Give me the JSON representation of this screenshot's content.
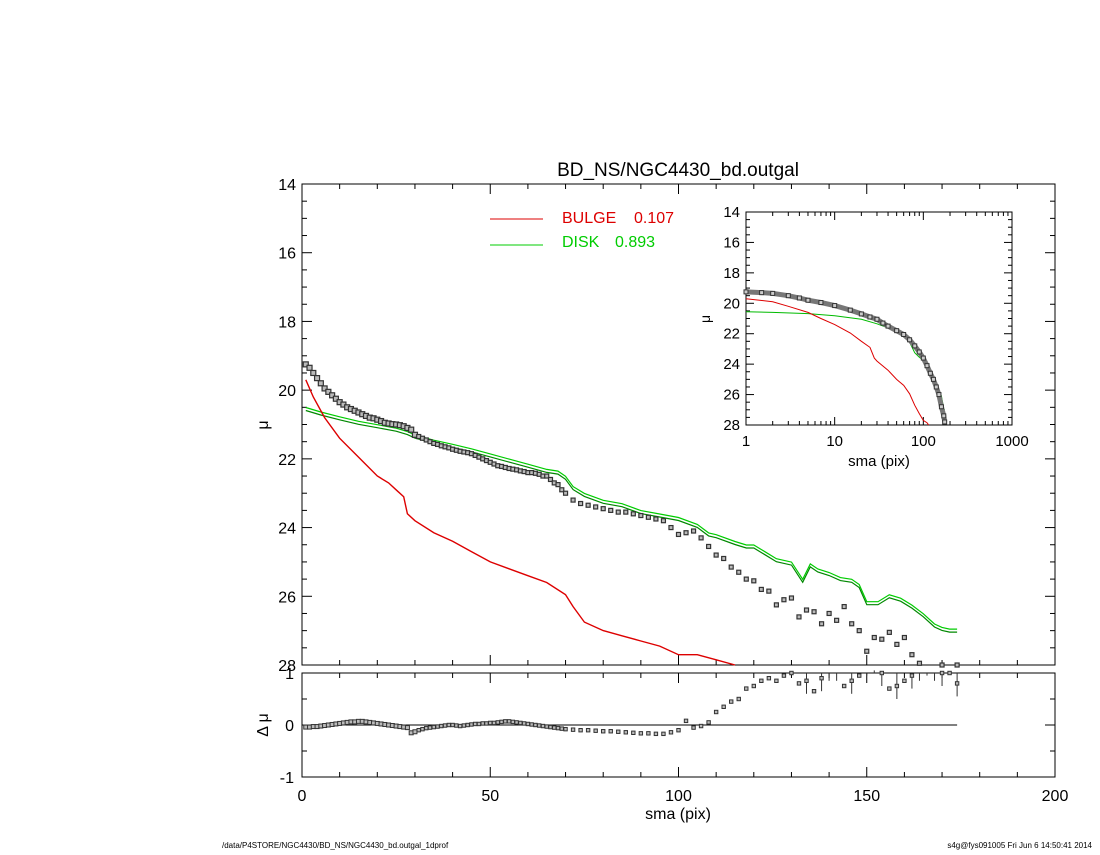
{
  "figure": {
    "title": "BD_NS/NGC4430_bd.outgal",
    "footer_left": "/data/P4STORE/NGC4430/BD_NS/NGC4430_bd.outgal_1dprof",
    "footer_right": "s4g@fys091005  Fri Jun  6 14:50:41 2014"
  },
  "chart_data": [
    {
      "id": "main",
      "type": "scatter",
      "ylabel": "μ",
      "xlim": [
        0,
        200
      ],
      "ylim": [
        28,
        14
      ],
      "y_inverted": true,
      "xticks": [
        0,
        50,
        100,
        150,
        200
      ],
      "yticks": [
        14,
        16,
        18,
        20,
        22,
        24,
        26,
        28
      ],
      "legend": {
        "placement": "top-center",
        "entries": [
          {
            "label": "BULGE",
            "value": "0.107",
            "color": "#dd0000"
          },
          {
            "label": "DISK",
            "value": "0.893",
            "color": "#00cc00"
          }
        ]
      },
      "series": [
        {
          "role": "data",
          "marker": "square",
          "color": "#555555",
          "x": [
            1,
            2,
            3,
            4,
            5,
            6,
            7,
            8,
            9,
            10,
            11,
            12,
            13,
            14,
            15,
            16,
            17,
            18,
            19,
            20,
            21,
            22,
            23,
            24,
            25,
            26,
            27,
            28,
            29,
            30,
            31,
            32,
            33,
            34,
            35,
            36,
            37,
            38,
            39,
            40,
            41,
            42,
            43,
            44,
            45,
            46,
            47,
            48,
            49,
            50,
            51,
            52,
            53,
            54,
            55,
            56,
            57,
            58,
            59,
            60,
            61,
            62,
            63,
            64,
            65,
            66,
            67,
            68,
            69,
            70,
            72,
            74,
            76,
            78,
            80,
            82,
            84,
            86,
            88,
            90,
            92,
            94,
            96,
            98,
            100,
            102,
            104,
            106,
            108,
            110,
            112,
            114,
            116,
            118,
            120,
            122,
            124,
            126,
            128,
            130,
            132,
            134,
            136,
            138,
            140,
            142,
            144,
            146,
            148,
            150,
            152,
            154,
            156,
            158,
            160,
            162,
            164,
            166,
            168,
            170,
            172,
            174
          ],
          "y": [
            19.25,
            19.35,
            19.5,
            19.65,
            19.8,
            19.95,
            20.05,
            20.15,
            20.25,
            20.35,
            20.42,
            20.5,
            20.55,
            20.6,
            20.65,
            20.7,
            20.75,
            20.8,
            20.82,
            20.86,
            20.9,
            20.95,
            20.97,
            20.99,
            21.0,
            21.02,
            21.05,
            21.1,
            21.15,
            21.3,
            21.35,
            21.4,
            21.45,
            21.5,
            21.55,
            21.58,
            21.62,
            21.65,
            21.68,
            21.72,
            21.75,
            21.78,
            21.8,
            21.82,
            21.85,
            21.9,
            21.95,
            22.0,
            22.05,
            22.1,
            22.15,
            22.2,
            22.22,
            22.25,
            22.28,
            22.3,
            22.32,
            22.35,
            22.37,
            22.4,
            22.4,
            22.42,
            22.45,
            22.5,
            22.5,
            22.6,
            22.7,
            22.75,
            22.9,
            23.0,
            23.2,
            23.3,
            23.35,
            23.4,
            23.45,
            23.5,
            23.55,
            23.55,
            23.6,
            23.65,
            23.7,
            23.75,
            23.8,
            24.0,
            24.2,
            24.15,
            24.1,
            24.3,
            24.55,
            24.8,
            24.9,
            25.15,
            25.3,
            25.5,
            25.55,
            25.8,
            25.85,
            26.25,
            26.1,
            26.05,
            26.6,
            26.4,
            26.45,
            26.8,
            26.5,
            26.7,
            26.3,
            26.8,
            27.0,
            27.6,
            27.2,
            27.25,
            27.05,
            27.4,
            27.2,
            27.7,
            27.95,
            28.2,
            28.5,
            28.0,
            28.3,
            28.0
          ]
        },
        {
          "role": "model",
          "color": "#00aa00",
          "x": [
            1,
            5,
            10,
            15,
            20,
            25,
            28,
            30,
            35,
            40,
            45,
            50,
            55,
            60,
            65,
            68,
            70,
            72,
            75,
            80,
            85,
            90,
            95,
            100,
            105,
            108,
            110,
            115,
            118,
            120,
            123,
            126,
            130,
            133,
            135,
            137,
            140,
            143,
            146,
            148,
            150,
            153,
            156,
            159,
            162,
            165,
            168,
            170,
            172,
            174
          ],
          "y": [
            20.55,
            20.68,
            20.82,
            20.95,
            21.05,
            21.15,
            21.25,
            21.35,
            21.5,
            21.62,
            21.75,
            21.9,
            22.05,
            22.2,
            22.35,
            22.4,
            22.55,
            22.85,
            23.05,
            23.25,
            23.35,
            23.55,
            23.65,
            23.75,
            23.95,
            24.2,
            24.25,
            24.45,
            24.55,
            24.55,
            24.75,
            24.95,
            25.05,
            25.55,
            25.1,
            25.25,
            25.35,
            25.5,
            25.55,
            25.7,
            26.2,
            26.2,
            26.0,
            26.1,
            26.3,
            26.55,
            26.85,
            26.95,
            27.0,
            27.0
          ]
        },
        {
          "role": "bulge",
          "color": "#dd0000",
          "x": [
            1,
            3,
            6,
            10,
            15,
            20,
            23,
            25,
            27,
            28,
            30,
            35,
            40,
            45,
            50,
            55,
            60,
            65,
            70,
            72,
            75,
            80,
            85,
            90,
            95,
            100,
            105,
            110,
            115
          ],
          "y": [
            19.7,
            20.2,
            20.8,
            21.4,
            21.95,
            22.5,
            22.7,
            22.9,
            23.1,
            23.6,
            23.8,
            24.15,
            24.4,
            24.7,
            25.0,
            25.2,
            25.4,
            25.6,
            25.95,
            26.3,
            26.75,
            27.0,
            27.15,
            27.3,
            27.45,
            27.7,
            27.7,
            27.85,
            28.0
          ]
        }
      ]
    },
    {
      "id": "inset",
      "type": "line",
      "xlabel": "sma (pix)",
      "ylabel": "μ",
      "x_scale": "log",
      "xlim": [
        1,
        1000
      ],
      "ylim": [
        28,
        14
      ],
      "y_inverted": true,
      "xticks": [
        1,
        10,
        100,
        1000
      ],
      "xtick_labels": [
        "1",
        "10",
        "100",
        "1000"
      ],
      "yticks": [
        14,
        16,
        18,
        20,
        22,
        24,
        26,
        28
      ],
      "series": [
        {
          "role": "data",
          "color": "#555555",
          "x": [
            1,
            1.5,
            2,
            3,
            4,
            5,
            7,
            10,
            15,
            20,
            25,
            30,
            35,
            40,
            50,
            60,
            70,
            80,
            90,
            100,
            110,
            120,
            130,
            140,
            150,
            160,
            170,
            174
          ],
          "y": [
            19.25,
            19.3,
            19.35,
            19.5,
            19.65,
            19.8,
            19.95,
            20.15,
            20.45,
            20.7,
            20.9,
            21.05,
            21.3,
            21.5,
            21.8,
            22.05,
            22.4,
            22.8,
            23.2,
            23.6,
            24.1,
            24.6,
            25.0,
            25.5,
            26.0,
            26.8,
            27.4,
            27.8
          ]
        },
        {
          "role": "model",
          "color": "#00aa00",
          "x": [
            1,
            2,
            5,
            10,
            20,
            30,
            40,
            50,
            60,
            70,
            80,
            90,
            100,
            110,
            120,
            130,
            140,
            150,
            160,
            170,
            174
          ],
          "y": [
            20.55,
            20.6,
            20.68,
            20.82,
            21.05,
            21.35,
            21.62,
            21.9,
            22.2,
            22.55,
            23.25,
            23.55,
            23.75,
            24.25,
            24.55,
            25.05,
            25.35,
            26.2,
            26.1,
            26.95,
            27.0
          ]
        },
        {
          "role": "bulge",
          "color": "#dd0000",
          "x": [
            1,
            2,
            3,
            5,
            7,
            10,
            15,
            20,
            25,
            28,
            30,
            40,
            50,
            60,
            70,
            80,
            90,
            100,
            110,
            115
          ],
          "y": [
            19.7,
            19.9,
            20.2,
            20.6,
            21.0,
            21.4,
            21.95,
            22.5,
            22.9,
            23.6,
            23.8,
            24.4,
            25.0,
            25.4,
            25.95,
            26.7,
            27.25,
            27.7,
            27.85,
            28.0
          ]
        }
      ]
    },
    {
      "id": "residual",
      "type": "scatter",
      "xlabel": "sma (pix)",
      "ylabel": "Δ μ",
      "xlim": [
        0,
        200
      ],
      "ylim": [
        -1,
        1
      ],
      "xticks": [
        0,
        50,
        100,
        150,
        200
      ],
      "yticks": [
        -1,
        0,
        1
      ],
      "reference_line": {
        "y": 0,
        "x_range": [
          1,
          174
        ]
      },
      "series": [
        {
          "role": "residual",
          "color": "#555555",
          "x": [
            1,
            2,
            3,
            4,
            5,
            6,
            7,
            8,
            9,
            10,
            11,
            12,
            13,
            14,
            15,
            16,
            17,
            18,
            19,
            20,
            21,
            22,
            23,
            24,
            25,
            26,
            27,
            28,
            29,
            30,
            31,
            32,
            33,
            34,
            35,
            36,
            37,
            38,
            39,
            40,
            41,
            42,
            43,
            44,
            45,
            46,
            47,
            48,
            49,
            50,
            51,
            52,
            53,
            54,
            55,
            56,
            57,
            58,
            59,
            60,
            61,
            62,
            63,
            64,
            65,
            66,
            67,
            68,
            69,
            70,
            72,
            74,
            76,
            78,
            80,
            82,
            84,
            86,
            88,
            90,
            92,
            94,
            96,
            98,
            100,
            102,
            104,
            106,
            108,
            110,
            112,
            114,
            116,
            118,
            120,
            122,
            124,
            126,
            128,
            130,
            132,
            134,
            136,
            138,
            140,
            142,
            144,
            146,
            148,
            150,
            152,
            154,
            156,
            158,
            160,
            162,
            164,
            166,
            168,
            170,
            172,
            174
          ],
          "y": [
            -0.04,
            -0.04,
            -0.03,
            -0.03,
            -0.02,
            -0.01,
            0.0,
            0.01,
            0.02,
            0.03,
            0.04,
            0.05,
            0.06,
            0.06,
            0.07,
            0.07,
            0.06,
            0.05,
            0.04,
            0.03,
            0.02,
            0.01,
            0.0,
            -0.01,
            -0.02,
            -0.03,
            -0.04,
            -0.05,
            -0.15,
            -0.13,
            -0.1,
            -0.08,
            -0.06,
            -0.05,
            -0.04,
            -0.03,
            -0.02,
            -0.01,
            0.0,
            0.0,
            -0.01,
            -0.02,
            -0.01,
            0.0,
            0.01,
            0.02,
            0.02,
            0.03,
            0.03,
            0.04,
            0.04,
            0.05,
            0.06,
            0.07,
            0.07,
            0.06,
            0.05,
            0.04,
            0.03,
            0.02,
            0.01,
            0.0,
            -0.01,
            -0.02,
            -0.03,
            -0.04,
            -0.05,
            -0.06,
            -0.07,
            -0.08,
            -0.09,
            -0.1,
            -0.1,
            -0.11,
            -0.12,
            -0.12,
            -0.13,
            -0.14,
            -0.15,
            -0.16,
            -0.16,
            -0.17,
            -0.17,
            -0.14,
            -0.1,
            0.08,
            -0.05,
            -0.02,
            0.05,
            0.25,
            0.35,
            0.45,
            0.5,
            0.7,
            0.75,
            0.85,
            0.9,
            0.85,
            0.95,
            1.0,
            0.8,
            0.85,
            0.65,
            0.9,
            1.1,
            1.1,
            0.75,
            0.85,
            0.95,
            1.2,
            1.3,
            1.0,
            0.7,
            0.75,
            0.85,
            0.95,
            1.1,
            1.2,
            1.1,
            1.0,
            1.0,
            0.8
          ],
          "error_bars_from_index": 100
        }
      ]
    }
  ]
}
